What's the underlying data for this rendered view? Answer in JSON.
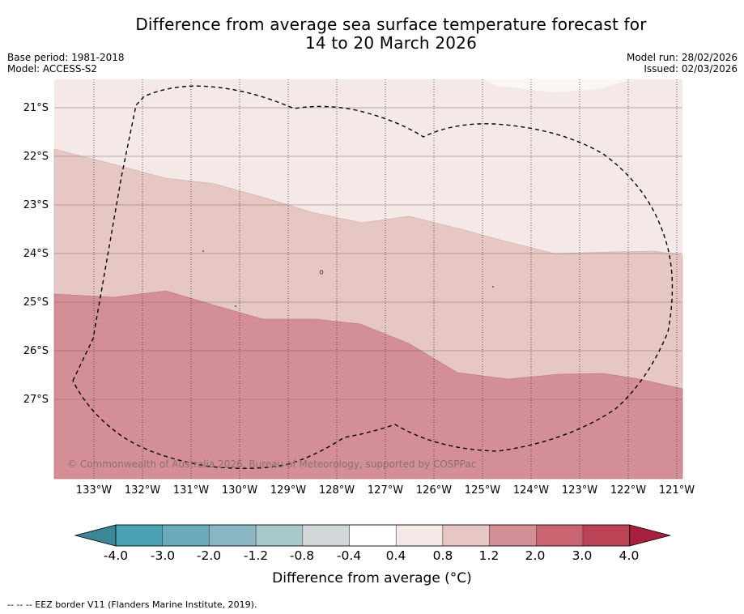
{
  "title": {
    "line1": "Difference from average sea surface temperature forecast for",
    "line2": "14 to 20 March 2026"
  },
  "meta_left": {
    "base_period": "Base period: 1981-2018",
    "model": "Model: ACCESS-S2"
  },
  "meta_right": {
    "model_run": "Model run: 28/02/2026",
    "issued": "Issued: 02/03/2026"
  },
  "map": {
    "latitude_labels": [
      "21°S",
      "22°S",
      "23°S",
      "24°S",
      "25°S",
      "26°S",
      "27°S"
    ],
    "longitude_labels": [
      "133°W",
      "132°W",
      "131°W",
      "130°W",
      "129°W",
      "128°W",
      "127°W",
      "126°W",
      "125°W",
      "124°W",
      "123°W",
      "122°W",
      "121°W"
    ],
    "copyright": "© Commonwealth of Australia 2026, Bureau of Meteorology, supported by COSPPac",
    "eez_border": "EEZ boundary (dashed)",
    "anomaly_bands": [
      {
        "range": "0.4 to 0.8",
        "color": "#f5e9e8"
      },
      {
        "range": "0.8 to 1.2",
        "color": "#e7c7c3"
      },
      {
        "range": "1.2 to 2.0",
        "color": "#d48f96"
      }
    ]
  },
  "colorbar": {
    "ticks": [
      "-4.0",
      "-3.0",
      "-2.0",
      "-1.2",
      "-0.8",
      "-0.4",
      "0.4",
      "0.8",
      "1.2",
      "2.0",
      "3.0",
      "4.0"
    ],
    "colors": [
      "#4aa1b2",
      "#6aabbb",
      "#8ab7c3",
      "#a8c8cc",
      "#d1d6d9",
      "#ffffff",
      "#f5e9e8",
      "#e7c7c3",
      "#d48f96",
      "#c86570",
      "#bc4255"
    ],
    "under_color": "#3b8795",
    "over_color": "#a8203f",
    "label": "Difference from average (°C)"
  },
  "footnote": "--  --  -- EEZ border V11 (Flanders Marine Institute, 2019)."
}
